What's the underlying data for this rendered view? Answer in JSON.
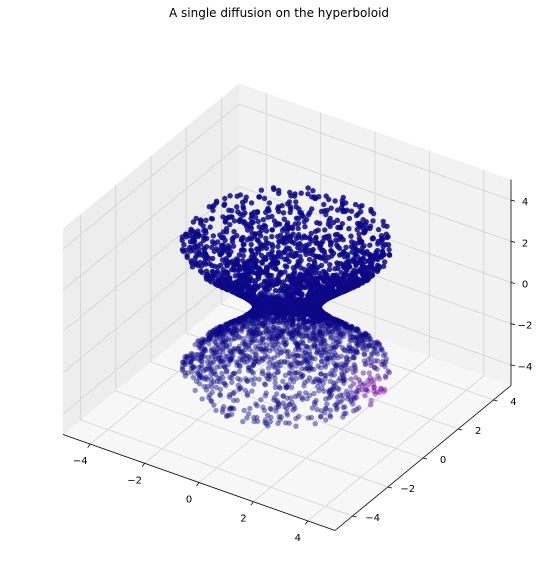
{
  "chart_data": {
    "type": "scatter",
    "projection": "3d",
    "title": "A single diffusion on the hyperboloid",
    "xlabel": "",
    "ylabel": "",
    "zlabel": "",
    "xlim": [
      -5,
      5
    ],
    "ylim": [
      -5,
      5
    ],
    "zlim": [
      -5,
      5
    ],
    "x_ticks": [
      -4,
      -2,
      0,
      2,
      4
    ],
    "y_ticks": [
      -4,
      -2,
      0,
      2,
      4
    ],
    "z_ticks": [
      -4,
      -2,
      0,
      2,
      4
    ],
    "x_tick_labels": [
      "−4",
      "−2",
      "0",
      "2",
      "4"
    ],
    "y_tick_labels": [
      "−4",
      "−2",
      "0",
      "2",
      "4"
    ],
    "z_tick_labels": [
      "−4",
      "−2",
      "0",
      "2",
      "4"
    ],
    "grid": true,
    "colormap": "plasma",
    "surface": "one-sheet hyperboloid x² + y² − z² = 1, waist radius 1, approximately 4000 points",
    "diffusion_source": {
      "x": 4.1,
      "y": 0.6,
      "z": -2.2
    },
    "point_color_low": "#0d0887",
    "point_color_high": "#f0f921"
  }
}
